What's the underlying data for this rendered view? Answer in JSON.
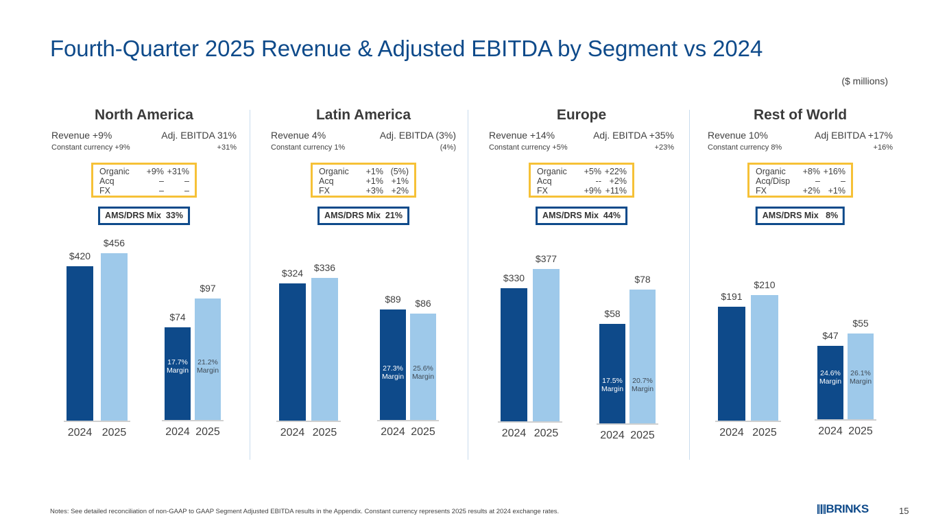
{
  "title": "Fourth-Quarter 2025 Revenue & Adjusted EBITDA by Segment vs 2024",
  "units_note": "($ millions)",
  "segments": [
    {
      "name": "North America",
      "revenue_label": "Revenue +9%",
      "ebitda_label": "Adj. EBITDA 31%",
      "cc_revenue": "Constant currency +9%",
      "cc_ebitda": "+31%",
      "breakdown": [
        {
          "label": "Organic",
          "revenue": "+9%",
          "ebitda": "+31%"
        },
        {
          "label": "Acq",
          "revenue": "–",
          "ebitda": "–"
        },
        {
          "label": "FX",
          "revenue": "–",
          "ebitda": "–"
        }
      ],
      "mix": "AMS/DRS Mix  33%"
    },
    {
      "name": "Latin America",
      "revenue_label": "Revenue 4%",
      "ebitda_label": "Adj. EBITDA (3%)",
      "cc_revenue": "Constant currency 1%",
      "cc_ebitda": "(4%)",
      "breakdown": [
        {
          "label": "Organic",
          "revenue": "+1%",
          "ebitda": "(5%)"
        },
        {
          "label": "Acq",
          "revenue": "+1%",
          "ebitda": "+1%"
        },
        {
          "label": "FX",
          "revenue": "+3%",
          "ebitda": "+2%"
        }
      ],
      "mix": "AMS/DRS Mix  21%"
    },
    {
      "name": "Europe",
      "revenue_label": "Revenue +14%",
      "ebitda_label": "Adj. EBITDA +35%",
      "cc_revenue": "Constant currency +5%",
      "cc_ebitda": "+23%",
      "breakdown": [
        {
          "label": "Organic",
          "revenue": "+5%",
          "ebitda": "+22%"
        },
        {
          "label": "Acq",
          "revenue": "--",
          "ebitda": "+2%"
        },
        {
          "label": "FX",
          "revenue": "+9%",
          "ebitda": "+11%"
        }
      ],
      "mix": "AMS/DRS Mix  44%"
    },
    {
      "name": "Rest of World",
      "revenue_label": "Revenue 10%",
      "ebitda_label": "Adj EBITDA +17%",
      "cc_revenue": "Constant currency 8%",
      "cc_ebitda": "+16%",
      "breakdown": [
        {
          "label": "Organic",
          "revenue": "+8%",
          "ebitda": "+16%"
        },
        {
          "label": "Acq/Disp",
          "revenue": "–",
          "ebitda": "–"
        },
        {
          "label": "FX",
          "revenue": "+2%",
          "ebitda": "+1%"
        }
      ],
      "mix": "AMS/DRS Mix   8%"
    }
  ],
  "chart_data": [
    {
      "type": "bar",
      "segment": "North America",
      "metric": "Revenue",
      "categories": [
        "2024",
        "2025"
      ],
      "values": [
        420,
        456
      ],
      "labels": [
        "$420",
        "$456"
      ],
      "ylim": [
        0,
        510
      ]
    },
    {
      "type": "bar",
      "segment": "North America",
      "metric": "Adjusted EBITDA",
      "categories": [
        "2024",
        "2025"
      ],
      "values": [
        74,
        97
      ],
      "labels": [
        "$74",
        "$97"
      ],
      "margins": [
        "17.7%\nMargin",
        "21.2%\nMargin"
      ],
      "ylim": [
        0,
        150
      ]
    },
    {
      "type": "bar",
      "segment": "Latin America",
      "metric": "Revenue",
      "categories": [
        "2024",
        "2025"
      ],
      "values": [
        324,
        336
      ],
      "labels": [
        "$324",
        "$336"
      ],
      "ylim": [
        0,
        442
      ]
    },
    {
      "type": "bar",
      "segment": "Latin America",
      "metric": "Adjusted EBITDA",
      "categories": [
        "2024",
        "2025"
      ],
      "values": [
        89,
        86
      ],
      "labels": [
        "$89",
        "$86"
      ],
      "margins": [
        "27.3%\nMargin",
        "25.6%\nMargin"
      ],
      "ylim": [
        0,
        151
      ]
    },
    {
      "type": "bar",
      "segment": "Europe",
      "metric": "Revenue",
      "categories": [
        "2024",
        "2025"
      ],
      "values": [
        330,
        377
      ],
      "labels": [
        "$330",
        "$377"
      ],
      "ylim": [
        0,
        464
      ]
    },
    {
      "type": "bar",
      "segment": "Europe",
      "metric": "Adjusted EBITDA",
      "categories": [
        "2024",
        "2025"
      ],
      "values": [
        58,
        78
      ],
      "labels": [
        "$58",
        "$78"
      ],
      "margins": [
        "17.5%\nMargin",
        "20.7%\nMargin"
      ],
      "ylim": [
        0,
        109
      ]
    },
    {
      "type": "bar",
      "segment": "Rest of World",
      "metric": "Revenue",
      "categories": [
        "2024",
        "2025"
      ],
      "values": [
        191,
        210
      ],
      "labels": [
        "$191",
        "$210"
      ],
      "ylim": [
        0,
        314
      ]
    },
    {
      "type": "bar",
      "segment": "Rest of World",
      "metric": "Adjusted EBITDA",
      "categories": [
        "2024",
        "2025"
      ],
      "values": [
        47,
        55
      ],
      "labels": [
        "$47",
        "$55"
      ],
      "margins": [
        "24.6%\nMargin",
        "26.1%\nMargin"
      ],
      "ylim": [
        0,
        120
      ]
    }
  ],
  "colors": {
    "bar_2024": "#0e4a8a",
    "bar_2025": "#9ec9ea",
    "title": "#0e4a8a",
    "yellow_box": "#f6c137",
    "mix_box": "#0e4a8a"
  },
  "footer": {
    "notes": "Notes: See detailed reconciliation of non-GAAP to GAAP Segment Adjusted EBITDA results in the Appendix. Constant currency represents 2025 results at 2024 exchange rates.",
    "logo": "BRINKS",
    "page_number": "15"
  }
}
